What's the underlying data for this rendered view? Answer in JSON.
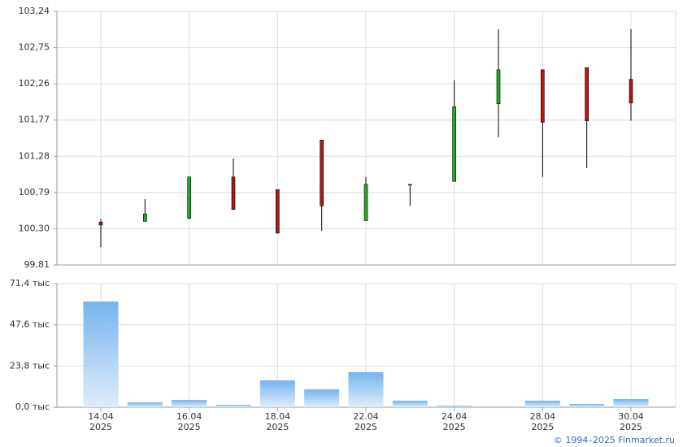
{
  "chart_data": [
    {
      "type": "candlestick",
      "open": [
        100.39,
        100.4,
        100.44,
        101.0,
        100.83,
        101.5,
        100.41,
        100.9,
        100.94,
        101.99,
        102.45,
        102.48,
        102.32
      ],
      "high": [
        100.43,
        100.7,
        101.0,
        101.25,
        100.83,
        101.5,
        101.0,
        100.9,
        102.31,
        103.0,
        102.45,
        102.48,
        103.0
      ],
      "low": [
        100.05,
        100.4,
        100.43,
        100.56,
        100.24,
        100.27,
        100.41,
        100.61,
        100.94,
        101.54,
        101.0,
        101.12,
        101.76
      ],
      "close": [
        100.35,
        100.5,
        101.0,
        100.56,
        100.24,
        100.61,
        100.9,
        100.9,
        101.95,
        102.45,
        101.74,
        101.76,
        102.0
      ],
      "up_color": "#22a822",
      "down_color": "#b01818",
      "ylim": [
        99.81,
        103.24
      ],
      "yticks": [
        {
          "value": 99.81,
          "label": "99,81"
        },
        {
          "value": 100.3,
          "label": "100,30"
        },
        {
          "value": 100.79,
          "label": "100,79"
        },
        {
          "value": 101.28,
          "label": "101,28"
        },
        {
          "value": 101.77,
          "label": "101,77"
        },
        {
          "value": 102.26,
          "label": "102,26"
        },
        {
          "value": 102.75,
          "label": "102,75"
        },
        {
          "value": 103.24,
          "label": "103,24"
        }
      ],
      "grid": true
    },
    {
      "type": "bar",
      "categories": [
        "14.04",
        null,
        "16.04",
        null,
        "18.04",
        null,
        "22.04",
        null,
        "24.04",
        null,
        "28.04",
        null,
        "30.04"
      ],
      "category_years": [
        "2025",
        null,
        "2025",
        null,
        "2025",
        null,
        "2025",
        null,
        "2025",
        null,
        "2025",
        null,
        "2025"
      ],
      "values": [
        61.1,
        2.8,
        4.2,
        1.4,
        15.5,
        10.3,
        20.2,
        3.8,
        0.9,
        0.5,
        3.8,
        1.9,
        4.7
      ],
      "color": [
        "#74b5ee",
        "#e0ecf9"
      ],
      "ylim": [
        0,
        71.4
      ],
      "yticks": [
        {
          "value": 0,
          "label": "0,0 тыс"
        },
        {
          "value": 23.8,
          "label": "23,8 тыс"
        },
        {
          "value": 47.6,
          "label": "47,6 тыс"
        },
        {
          "value": 71.4,
          "label": "71,4 тыс"
        }
      ],
      "grid": true
    }
  ],
  "footer": "© 1994–2025 Finmarket.ru"
}
